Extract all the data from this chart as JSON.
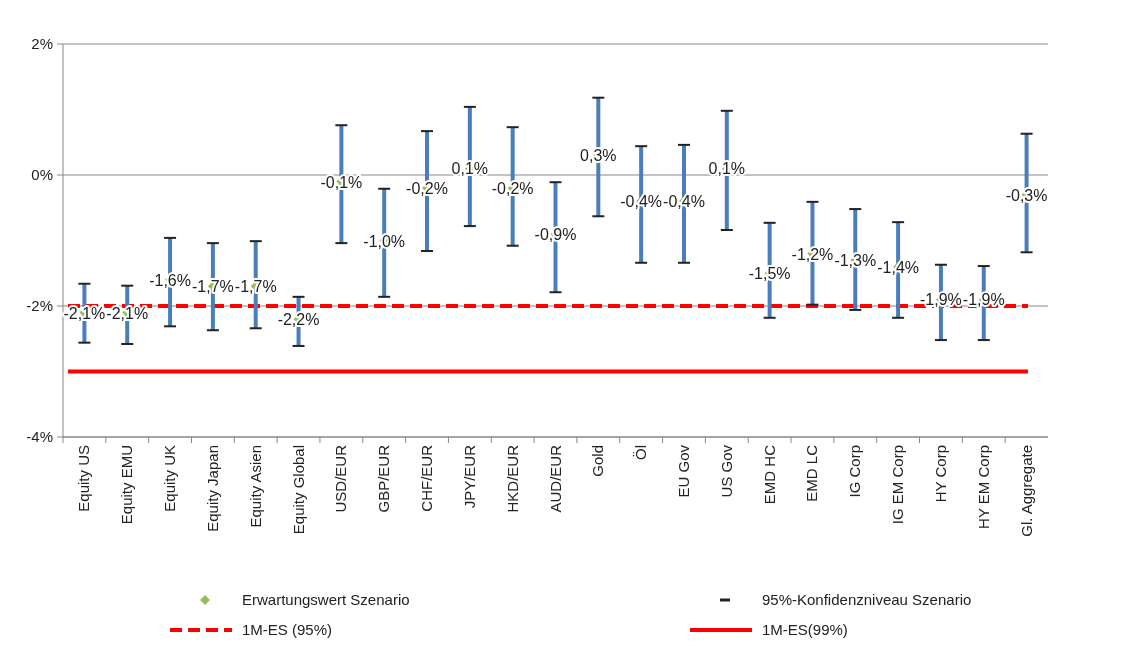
{
  "chart_data": {
    "type": "scatter",
    "categories": [
      "Equity US",
      "Equity EMU",
      "Equity UK",
      "Equity Japan",
      "Equity Asien",
      "Equity Global",
      "USD/EUR",
      "GBP/EUR",
      "CHF/EUR",
      "JPY/EUR",
      "HKD/EUR",
      "AUD/EUR",
      "Gold",
      "Öl",
      "EU Gov",
      "US Gov",
      "EMD HC",
      "EMD LC",
      "IG Corp",
      "IG EM Corp",
      "HY Corp",
      "HY EM Corp",
      "Gl. Aggregate"
    ],
    "series": [
      {
        "name": "Erwartungswert Szenario",
        "color": "#9bbb59",
        "marker": "diamond",
        "values": [
          -2.1,
          -2.1,
          -1.6,
          -1.7,
          -1.7,
          -2.2,
          -0.1,
          -1.0,
          -0.2,
          0.1,
          -0.2,
          -0.9,
          0.3,
          -0.4,
          -0.4,
          0.1,
          -1.5,
          -1.2,
          -1.3,
          -1.4,
          -1.9,
          -1.9,
          -0.3
        ],
        "value_labels": [
          "-2,1%",
          "-2,1%",
          "-1,6%",
          "-1,7%",
          "-1,7%",
          "-2,2%",
          "-0,1%",
          "-1,0%",
          "-0,2%",
          "0,1%",
          "-0,2%",
          "-0,9%",
          "0,3%",
          "-0,4%",
          "-0,4%",
          "0,1%",
          "-1,5%",
          "-1,2%",
          "-1,3%",
          "-1,4%",
          "-1,9%",
          "-1,9%",
          "-0,3%"
        ],
        "errors": [
          [
            -2.56,
            -1.66
          ],
          [
            -2.58,
            -1.69
          ],
          [
            -2.31,
            -0.96
          ],
          [
            -2.37,
            -1.04
          ],
          [
            -2.34,
            -1.01
          ],
          [
            -2.61,
            -1.86
          ],
          [
            -1.04,
            0.76
          ],
          [
            -1.86,
            -0.21
          ],
          [
            -1.16,
            0.67
          ],
          [
            -0.78,
            1.04
          ],
          [
            -1.08,
            0.73
          ],
          [
            -1.79,
            -0.11
          ],
          [
            -0.63,
            1.18
          ],
          [
            -1.34,
            0.44
          ],
          [
            -1.34,
            0.46
          ],
          [
            -0.84,
            0.98
          ],
          [
            -2.18,
            -0.73
          ],
          [
            -1.98,
            -0.41
          ],
          [
            -2.06,
            -0.52
          ],
          [
            -2.18,
            -0.72
          ],
          [
            -2.52,
            -1.37
          ],
          [
            -2.52,
            -1.39
          ],
          [
            -1.18,
            0.63
          ]
        ]
      }
    ],
    "ylim": [
      -4,
      2
    ],
    "yticks": [
      {
        "value": -4,
        "label": "-4%"
      },
      {
        "value": -2,
        "label": "-2%"
      },
      {
        "value": 0,
        "label": "0%"
      },
      {
        "value": 2,
        "label": "2%"
      }
    ],
    "grid": "y",
    "ref_lines": [
      {
        "axis": "y",
        "value": -2,
        "label": "1M-ES (95%)",
        "color": "#ff0000",
        "line_style": "dashed"
      },
      {
        "axis": "y",
        "value": -3,
        "label": "1M-ES(99%)",
        "color": "#ff0000",
        "line_style": "solid"
      }
    ],
    "annotations": [
      "95%-Konfidenzniveau Szenario"
    ],
    "legend": "bottom"
  }
}
